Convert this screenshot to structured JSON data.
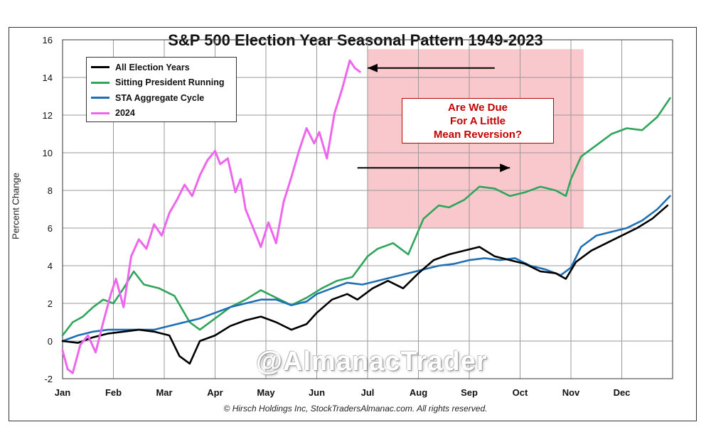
{
  "chart_data": {
    "type": "line",
    "title": "S&P 500 Election Year Seasonal Pattern 1949-2023",
    "xlabel": "",
    "ylabel": "Percent Change",
    "ylim": [
      -2,
      16
    ],
    "yticks": [
      -2,
      0,
      2,
      4,
      6,
      8,
      10,
      12,
      14,
      16
    ],
    "xlim": [
      0,
      12
    ],
    "categories": [
      "Jan",
      "Feb",
      "Mar",
      "Apr",
      "May",
      "Jun",
      "Jul",
      "Aug",
      "Sep",
      "Oct",
      "Nov",
      "Dec"
    ],
    "grid": true,
    "legend_position": "top-left",
    "series": [
      {
        "name": "All Election Years",
        "color": "#000000",
        "x": [
          0,
          0.3,
          0.6,
          0.9,
          1.2,
          1.5,
          1.8,
          2.1,
          2.3,
          2.5,
          2.7,
          3.0,
          3.3,
          3.6,
          3.9,
          4.2,
          4.5,
          4.8,
          5.0,
          5.3,
          5.6,
          5.8,
          6.1,
          6.4,
          6.7,
          7.0,
          7.3,
          7.6,
          7.9,
          8.2,
          8.5,
          8.8,
          9.1,
          9.4,
          9.7,
          9.9,
          10.1,
          10.4,
          10.7,
          11.0,
          11.3,
          11.6,
          11.9
        ],
        "values": [
          0,
          -0.1,
          0.2,
          0.4,
          0.5,
          0.6,
          0.5,
          0.3,
          -0.8,
          -1.2,
          0,
          0.3,
          0.8,
          1.1,
          1.3,
          1.0,
          0.6,
          0.9,
          1.5,
          2.2,
          2.5,
          2.2,
          2.8,
          3.2,
          2.8,
          3.6,
          4.3,
          4.6,
          4.8,
          5.0,
          4.5,
          4.3,
          4.1,
          3.7,
          3.6,
          3.3,
          4.2,
          4.8,
          5.2,
          5.6,
          6.0,
          6.5,
          7.2
        ]
      },
      {
        "name": "Sitting President Running",
        "color": "#2ea55a",
        "x": [
          0,
          0.2,
          0.4,
          0.6,
          0.8,
          1.0,
          1.2,
          1.4,
          1.6,
          1.9,
          2.2,
          2.5,
          2.7,
          3.0,
          3.3,
          3.6,
          3.9,
          4.2,
          4.5,
          4.8,
          5.1,
          5.4,
          5.7,
          6.0,
          6.2,
          6.5,
          6.8,
          7.1,
          7.4,
          7.6,
          7.9,
          8.2,
          8.5,
          8.8,
          9.1,
          9.4,
          9.7,
          9.9,
          10.0,
          10.2,
          10.5,
          10.8,
          11.1,
          11.4,
          11.7,
          11.95
        ],
        "values": [
          0.3,
          1.0,
          1.3,
          1.8,
          2.2,
          2.0,
          2.8,
          3.7,
          3.0,
          2.8,
          2.4,
          1.0,
          0.6,
          1.2,
          1.8,
          2.2,
          2.7,
          2.3,
          1.9,
          2.3,
          2.8,
          3.2,
          3.4,
          4.5,
          4.9,
          5.2,
          4.6,
          6.5,
          7.2,
          7.1,
          7.5,
          8.2,
          8.1,
          7.7,
          7.9,
          8.2,
          8.0,
          7.7,
          8.6,
          9.8,
          10.4,
          11.0,
          11.3,
          11.2,
          11.9,
          12.9
        ]
      },
      {
        "name": "STA Aggregate Cycle",
        "color": "#1f6fb5",
        "x": [
          0,
          0.3,
          0.6,
          0.9,
          1.2,
          1.5,
          1.8,
          2.1,
          2.4,
          2.7,
          3.0,
          3.3,
          3.6,
          3.9,
          4.2,
          4.5,
          4.8,
          5.0,
          5.3,
          5.6,
          5.9,
          6.2,
          6.5,
          6.8,
          7.1,
          7.4,
          7.7,
          8.0,
          8.3,
          8.6,
          8.9,
          9.2,
          9.5,
          9.8,
          10.0,
          10.2,
          10.5,
          10.8,
          11.1,
          11.4,
          11.7,
          11.95
        ],
        "values": [
          0,
          0.3,
          0.5,
          0.6,
          0.6,
          0.6,
          0.6,
          0.8,
          1.0,
          1.2,
          1.5,
          1.8,
          2.0,
          2.2,
          2.2,
          1.9,
          2.1,
          2.5,
          2.8,
          3.1,
          3.0,
          3.2,
          3.4,
          3.6,
          3.8,
          4.0,
          4.1,
          4.3,
          4.4,
          4.3,
          4.4,
          4.0,
          3.8,
          3.5,
          3.9,
          5.0,
          5.6,
          5.8,
          6.0,
          6.4,
          7.0,
          7.7
        ]
      },
      {
        "name": "2024",
        "color": "#ee66ee",
        "x": [
          0,
          0.1,
          0.2,
          0.35,
          0.5,
          0.65,
          0.8,
          0.95,
          1.05,
          1.2,
          1.35,
          1.5,
          1.65,
          1.8,
          1.95,
          2.1,
          2.25,
          2.4,
          2.55,
          2.7,
          2.85,
          3.0,
          3.1,
          3.25,
          3.4,
          3.5,
          3.6,
          3.75,
          3.9,
          4.05,
          4.2,
          4.35,
          4.5,
          4.65,
          4.8,
          4.95,
          5.05,
          5.2,
          5.35,
          5.5,
          5.65,
          5.75,
          5.85
        ],
        "values": [
          -0.5,
          -1.5,
          -1.7,
          -0.2,
          0.3,
          -0.6,
          1.0,
          2.5,
          3.3,
          1.8,
          4.5,
          5.4,
          4.9,
          6.2,
          5.6,
          6.8,
          7.5,
          8.3,
          7.7,
          8.8,
          9.6,
          10.1,
          9.4,
          9.7,
          7.9,
          8.6,
          7.0,
          6.0,
          5.0,
          6.3,
          5.2,
          7.4,
          8.7,
          10.1,
          11.3,
          10.5,
          11.1,
          9.7,
          12.1,
          13.4,
          14.9,
          14.5,
          14.3
        ]
      }
    ],
    "annotations": {
      "shaded_region": {
        "x_start": 6.0,
        "x_end": 10.25,
        "y_start": 6.0,
        "y_end": 15.5,
        "color": "#f8c8cc"
      },
      "arrow_2024": {
        "from": [
          8.5,
          14.5
        ],
        "to": [
          6.0,
          14.5
        ]
      },
      "arrow_mid": {
        "from": [
          5.8,
          9.2
        ],
        "to": [
          8.8,
          9.2
        ]
      }
    }
  },
  "callout": {
    "line1": "Are We Due",
    "line2": "For A Little",
    "line3": "Mean Reversion?"
  },
  "watermark": "@AlmanacTrader",
  "copyright": "© Hirsch Holdings Inc, StockTradersAlmanac.com. All rights reserved."
}
